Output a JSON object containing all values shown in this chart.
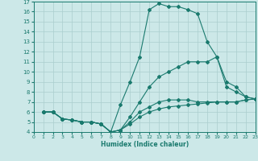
{
  "xlabel": "Humidex (Indice chaleur)",
  "bg_color": "#cce8e8",
  "line_color": "#1a7a6e",
  "grid_color": "#aacece",
  "xlim": [
    0,
    23
  ],
  "ylim": [
    4,
    17
  ],
  "xticks": [
    0,
    1,
    2,
    3,
    4,
    5,
    6,
    7,
    8,
    9,
    10,
    11,
    12,
    13,
    14,
    15,
    16,
    17,
    18,
    19,
    20,
    21,
    22,
    23
  ],
  "yticks": [
    4,
    5,
    6,
    7,
    8,
    9,
    10,
    11,
    12,
    13,
    14,
    15,
    16,
    17
  ],
  "line_top_x": [
    1,
    2,
    3,
    4,
    5,
    6,
    7,
    8,
    9,
    10,
    11,
    12,
    13,
    14,
    15,
    16,
    17,
    18,
    19,
    20,
    21,
    22,
    23
  ],
  "line_top_y": [
    6,
    6,
    5.3,
    5.2,
    5.0,
    5.0,
    4.8,
    4.0,
    6.7,
    9.0,
    11.5,
    16.2,
    16.8,
    16.5,
    16.5,
    16.2,
    15.8,
    13.0,
    11.5,
    9.0,
    8.5,
    7.5,
    7.3
  ],
  "line_mid_x": [
    1,
    2,
    3,
    4,
    5,
    6,
    7,
    8,
    9,
    10,
    11,
    12,
    13,
    14,
    15,
    16,
    17,
    18,
    19,
    20,
    21,
    22,
    23
  ],
  "line_mid_y": [
    6,
    6,
    5.3,
    5.2,
    5.0,
    5.0,
    4.8,
    4.0,
    4.2,
    5.5,
    7.0,
    8.5,
    9.5,
    10.0,
    10.5,
    11.0,
    11.0,
    11.0,
    11.5,
    8.5,
    8.0,
    7.5,
    7.3
  ],
  "line_flat_x": [
    1,
    2,
    3,
    4,
    5,
    6,
    7,
    8,
    9,
    10,
    11,
    12,
    13,
    14,
    15,
    16,
    17,
    18,
    19,
    20,
    21,
    22,
    23
  ],
  "line_flat_y": [
    6,
    6,
    5.3,
    5.2,
    5.0,
    5.0,
    4.8,
    4.0,
    4.2,
    5.0,
    6.0,
    6.5,
    7.0,
    7.2,
    7.2,
    7.2,
    7.0,
    7.0,
    7.0,
    7.0,
    7.0,
    7.2,
    7.3
  ],
  "line_bot_x": [
    1,
    2,
    3,
    4,
    5,
    6,
    7,
    8,
    9,
    10,
    11,
    12,
    13,
    14,
    15,
    16,
    17,
    18,
    19,
    20,
    21,
    22,
    23
  ],
  "line_bot_y": [
    6,
    6,
    5.3,
    5.2,
    5.0,
    5.0,
    4.8,
    4.0,
    4.2,
    4.8,
    5.5,
    6.0,
    6.3,
    6.5,
    6.6,
    6.7,
    6.8,
    6.9,
    7.0,
    7.0,
    7.0,
    7.2,
    7.3
  ]
}
